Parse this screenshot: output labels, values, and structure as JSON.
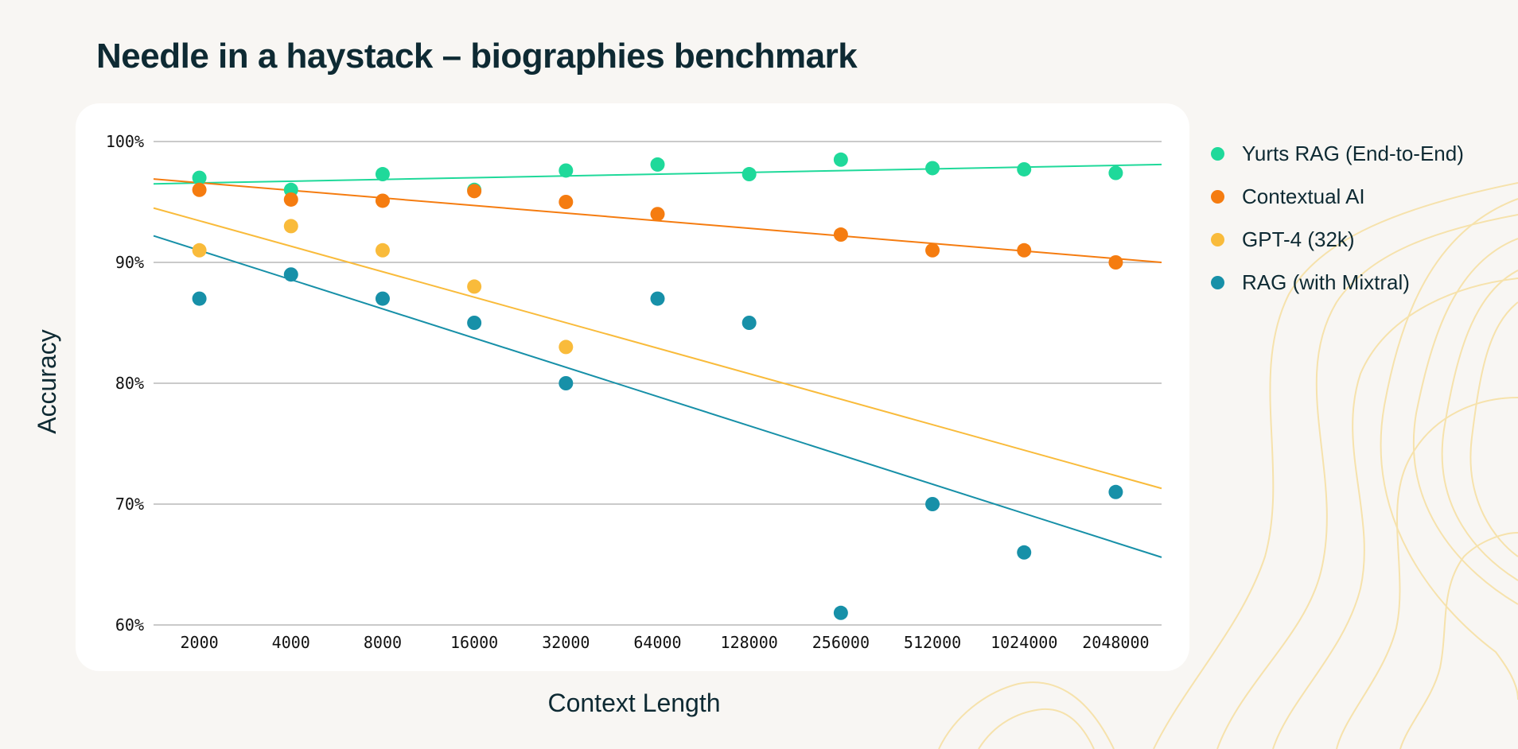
{
  "chart_data": {
    "type": "scatter",
    "title": "Needle in a haystack – biographies benchmark",
    "xlabel": "Context Length",
    "ylabel": "Accuracy",
    "categories": [
      "2000",
      "4000",
      "8000",
      "16000",
      "32000",
      "64000",
      "128000",
      "256000",
      "512000",
      "1024000",
      "2048000"
    ],
    "ylim": [
      60,
      100
    ],
    "yticks": [
      "60%",
      "70%",
      "80%",
      "90%",
      "100%"
    ],
    "grid": true,
    "legend_position": "right",
    "series": [
      {
        "name": "Yurts RAG (End-to-End)",
        "color": "#1fd99a",
        "values": [
          97,
          96,
          97.3,
          96,
          97.6,
          98.1,
          97.3,
          98.5,
          97.8,
          97.7,
          97.4
        ],
        "trend": [
          96.5,
          98.1
        ]
      },
      {
        "name": "Contextual AI",
        "color": "#f57c10",
        "values": [
          96,
          95.2,
          95.1,
          95.9,
          95,
          94,
          null,
          92.3,
          91,
          91,
          90
        ],
        "trend": [
          96.9,
          90
        ]
      },
      {
        "name": "GPT-4 (32k)",
        "color": "#f9bb3b",
        "values": [
          91,
          93,
          91,
          88,
          83,
          null,
          null,
          null,
          null,
          null,
          null
        ],
        "trend": [
          94.5,
          71.3
        ]
      },
      {
        "name": "RAG (with Mixtral)",
        "color": "#1790a8",
        "values": [
          87,
          89,
          87,
          85,
          80,
          87,
          85,
          61,
          70,
          66,
          71
        ],
        "trend": [
          92.2,
          65.6
        ]
      }
    ]
  }
}
